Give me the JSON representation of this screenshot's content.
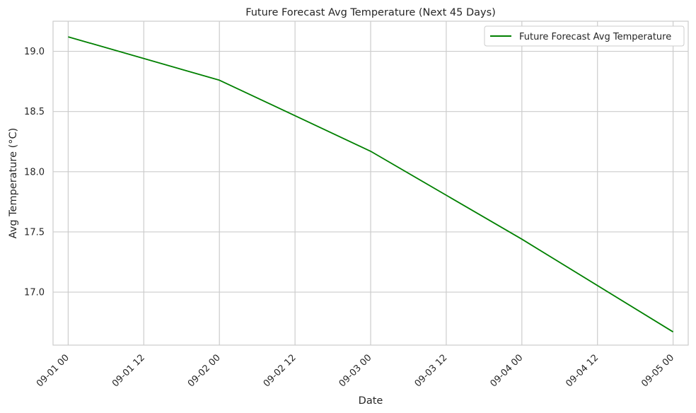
{
  "chart_data": {
    "type": "line",
    "title": "Future Forecast Avg Temperature (Next 45 Days)",
    "xlabel": "Date",
    "ylabel": "Avg Temperature (°C)",
    "x_ticks": [
      "09-01 00",
      "09-01 12",
      "09-02 00",
      "09-02 12",
      "09-03 00",
      "09-03 12",
      "09-04 00",
      "09-04 12",
      "09-05 00"
    ],
    "y_ticks": [
      "17.0",
      "17.5",
      "18.0",
      "18.5",
      "19.0"
    ],
    "xlim": [
      "2024-08-31T21:36",
      "2024-09-05T02:24"
    ],
    "ylim": [
      16.56,
      19.25
    ],
    "grid": true,
    "legend": "top-right",
    "series": [
      {
        "name": "Future Forecast Avg Temperature",
        "color": "#008000",
        "x": [
          "2024-09-01",
          "2024-09-02",
          "2024-09-03",
          "2024-09-04",
          "2024-09-05"
        ],
        "y": [
          19.12,
          18.76,
          18.17,
          17.44,
          16.67
        ]
      }
    ]
  }
}
